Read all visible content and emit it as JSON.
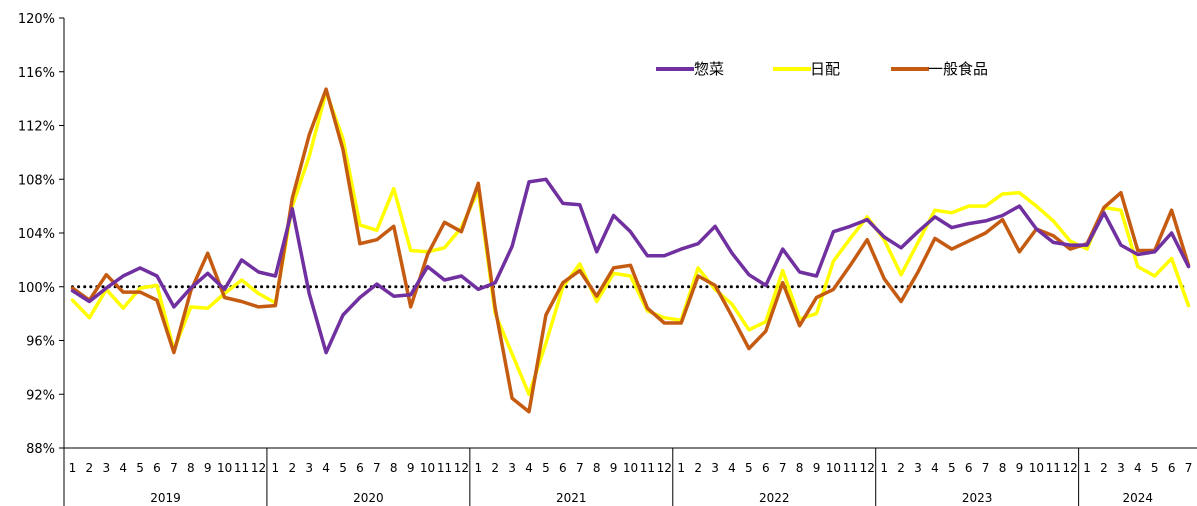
{
  "chart_data": {
    "type": "line",
    "title": "",
    "xlabel": "",
    "ylabel": "",
    "ylim": [
      88,
      120
    ],
    "yticks": [
      88,
      92,
      96,
      100,
      104,
      108,
      112,
      116,
      120
    ],
    "ytick_labels": [
      "88%",
      "92%",
      "96%",
      "100%",
      "104%",
      "108%",
      "112%",
      "116%",
      "120%"
    ],
    "reference_line": 100,
    "grid": false,
    "legend_position": "top-right",
    "years": [
      {
        "label": "2019",
        "months": 12
      },
      {
        "label": "2020",
        "months": 12
      },
      {
        "label": "2021",
        "months": 12
      },
      {
        "label": "2022",
        "months": 12
      },
      {
        "label": "2023",
        "months": 12
      },
      {
        "label": "2024",
        "months": 7
      }
    ],
    "months": [
      "1",
      "2",
      "3",
      "4",
      "5",
      "6",
      "7",
      "8",
      "9",
      "10",
      "11",
      "12",
      "1",
      "2",
      "3",
      "4",
      "5",
      "6",
      "7",
      "8",
      "9",
      "10",
      "11",
      "12",
      "1",
      "2",
      "3",
      "4",
      "5",
      "6",
      "7",
      "8",
      "9",
      "10",
      "11",
      "12",
      "1",
      "2",
      "3",
      "4",
      "5",
      "6",
      "7",
      "8",
      "9",
      "10",
      "11",
      "12",
      "1",
      "2",
      "3",
      "4",
      "5",
      "6",
      "7",
      "8",
      "9",
      "10",
      "11",
      "12",
      "1",
      "2",
      "3",
      "4",
      "5",
      "6",
      "7"
    ],
    "series": [
      {
        "name": "日配",
        "color": "#ffff00",
        "values": [
          99.0,
          97.7,
          99.8,
          98.4,
          99.9,
          100.1,
          95.3,
          98.5,
          98.4,
          99.5,
          100.5,
          99.5,
          98.8,
          106.0,
          109.7,
          114.5,
          111.0,
          104.6,
          104.2,
          107.3,
          102.7,
          102.6,
          102.9,
          104.4,
          107.2,
          98.0,
          95.0,
          92.0,
          95.8,
          100.0,
          101.7,
          98.9,
          101.0,
          100.8,
          98.2,
          97.7,
          97.5,
          101.4,
          99.8,
          98.7,
          96.8,
          97.4,
          101.2,
          97.6,
          98.0,
          101.9,
          103.6,
          105.2,
          103.5,
          100.9,
          103.3,
          105.7,
          105.5,
          106.0,
          106.0,
          106.9,
          107.0,
          106.0,
          104.9,
          103.4,
          102.8,
          105.9,
          105.7,
          101.5,
          100.8,
          102.1,
          98.6
        ]
      },
      {
        "name": "一般食品",
        "color": "#c55a11",
        "values": [
          99.9,
          99.0,
          100.9,
          99.6,
          99.6,
          99.0,
          95.1,
          99.7,
          102.5,
          99.2,
          98.9,
          98.5,
          98.6,
          106.6,
          111.3,
          114.7,
          110.2,
          103.2,
          103.5,
          104.5,
          98.5,
          102.4,
          104.8,
          104.1,
          107.7,
          98.4,
          91.7,
          90.7,
          97.9,
          100.3,
          101.2,
          99.3,
          101.4,
          101.6,
          98.4,
          97.3,
          97.3,
          100.8,
          100.1,
          97.8,
          95.4,
          96.7,
          100.3,
          97.1,
          99.2,
          99.8,
          101.6,
          103.5,
          100.6,
          98.9,
          101.1,
          103.6,
          102.8,
          103.4,
          104.0,
          105.0,
          102.6,
          104.3,
          103.8,
          102.8,
          103.2,
          105.9,
          107.0,
          102.7,
          102.7,
          105.7,
          101.6
        ]
      },
      {
        "name": "惣菜",
        "color": "#7030a0",
        "values": [
          99.7,
          98.9,
          99.9,
          100.8,
          101.4,
          100.8,
          98.5,
          99.9,
          101.0,
          99.8,
          102.0,
          101.1,
          100.8,
          105.8,
          99.5,
          95.1,
          97.9,
          99.2,
          100.2,
          99.3,
          99.4,
          101.5,
          100.5,
          100.8,
          99.8,
          100.3,
          103.0,
          107.8,
          108.0,
          106.2,
          106.1,
          102.6,
          105.3,
          104.1,
          102.3,
          102.3,
          102.8,
          103.2,
          104.5,
          102.5,
          100.9,
          100.1,
          102.8,
          101.1,
          100.8,
          104.1,
          104.5,
          105.0,
          103.7,
          102.9,
          104.1,
          105.2,
          104.4,
          104.7,
          104.9,
          105.3,
          106.0,
          104.3,
          103.3,
          103.1,
          103.1,
          105.5,
          103.1,
          102.4,
          102.6,
          104.0,
          101.5
        ]
      }
    ],
    "legend": [
      {
        "label": "惣菜",
        "color": "#7030a0"
      },
      {
        "label": "日配",
        "color": "#ffff00"
      },
      {
        "label": "一般食品",
        "color": "#c55a11"
      }
    ]
  }
}
